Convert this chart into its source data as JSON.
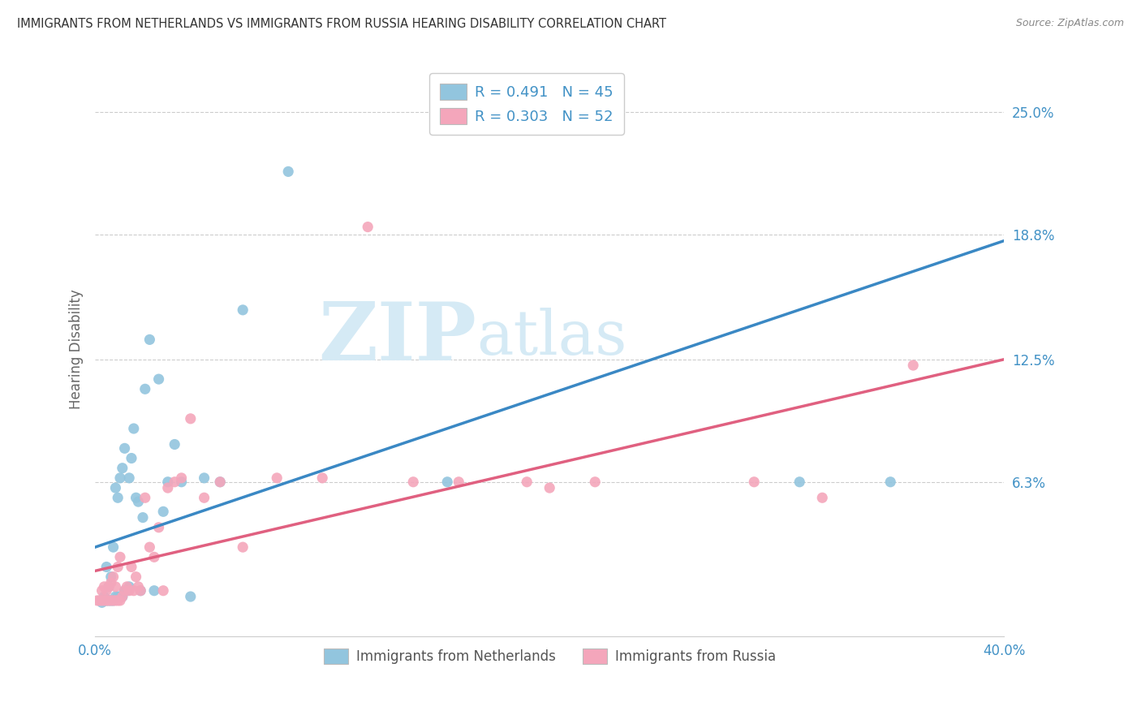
{
  "title": "IMMIGRANTS FROM NETHERLANDS VS IMMIGRANTS FROM RUSSIA HEARING DISABILITY CORRELATION CHART",
  "source": "Source: ZipAtlas.com",
  "ylabel": "Hearing Disability",
  "ytick_labels": [
    "6.3%",
    "12.5%",
    "18.8%",
    "25.0%"
  ],
  "ytick_values": [
    0.063,
    0.125,
    0.188,
    0.25
  ],
  "xmin": 0.0,
  "xmax": 0.4,
  "ymin": -0.015,
  "ymax": 0.275,
  "legend_blue_r": "R = 0.491",
  "legend_blue_n": "N = 45",
  "legend_pink_r": "R = 0.303",
  "legend_pink_n": "N = 52",
  "legend_label_blue": "Immigrants from Netherlands",
  "legend_label_pink": "Immigrants from Russia",
  "blue_color": "#92c5de",
  "pink_color": "#f4a6bb",
  "blue_line_color": "#3a88c4",
  "pink_line_color": "#e06080",
  "title_color": "#333333",
  "axis_label_color": "#4292c6",
  "watermark_color": "#d5eaf5",
  "background_color": "#ffffff",
  "blue_line_x0": 0.0,
  "blue_line_y0": 0.03,
  "blue_line_x1": 0.4,
  "blue_line_y1": 0.185,
  "pink_line_x0": 0.0,
  "pink_line_y0": 0.018,
  "pink_line_x1": 0.4,
  "pink_line_y1": 0.125,
  "blue_scatter_x": [
    0.003,
    0.004,
    0.005,
    0.005,
    0.006,
    0.006,
    0.007,
    0.007,
    0.008,
    0.008,
    0.009,
    0.009,
    0.01,
    0.01,
    0.011,
    0.011,
    0.012,
    0.012,
    0.013,
    0.013,
    0.014,
    0.015,
    0.015,
    0.016,
    0.017,
    0.018,
    0.019,
    0.02,
    0.021,
    0.022,
    0.024,
    0.026,
    0.028,
    0.03,
    0.032,
    0.035,
    0.038,
    0.042,
    0.048,
    0.055,
    0.065,
    0.085,
    0.155,
    0.31,
    0.35
  ],
  "blue_scatter_y": [
    0.002,
    0.005,
    0.003,
    0.02,
    0.003,
    0.01,
    0.003,
    0.015,
    0.003,
    0.03,
    0.005,
    0.06,
    0.005,
    0.055,
    0.005,
    0.065,
    0.005,
    0.07,
    0.008,
    0.08,
    0.008,
    0.01,
    0.065,
    0.075,
    0.09,
    0.055,
    0.053,
    0.008,
    0.045,
    0.11,
    0.135,
    0.008,
    0.115,
    0.048,
    0.063,
    0.082,
    0.063,
    0.005,
    0.065,
    0.063,
    0.15,
    0.22,
    0.063,
    0.063,
    0.063
  ],
  "pink_scatter_x": [
    0.001,
    0.002,
    0.003,
    0.003,
    0.004,
    0.004,
    0.005,
    0.005,
    0.006,
    0.006,
    0.007,
    0.007,
    0.008,
    0.008,
    0.009,
    0.009,
    0.01,
    0.01,
    0.011,
    0.011,
    0.012,
    0.013,
    0.014,
    0.015,
    0.016,
    0.017,
    0.018,
    0.019,
    0.02,
    0.022,
    0.024,
    0.026,
    0.028,
    0.03,
    0.032,
    0.035,
    0.038,
    0.042,
    0.048,
    0.055,
    0.065,
    0.08,
    0.1,
    0.12,
    0.14,
    0.16,
    0.19,
    0.2,
    0.22,
    0.29,
    0.32,
    0.36
  ],
  "pink_scatter_y": [
    0.003,
    0.003,
    0.003,
    0.008,
    0.003,
    0.01,
    0.003,
    0.008,
    0.003,
    0.01,
    0.003,
    0.012,
    0.003,
    0.015,
    0.003,
    0.01,
    0.003,
    0.02,
    0.003,
    0.025,
    0.005,
    0.008,
    0.01,
    0.008,
    0.02,
    0.008,
    0.015,
    0.01,
    0.008,
    0.055,
    0.03,
    0.025,
    0.04,
    0.008,
    0.06,
    0.063,
    0.065,
    0.095,
    0.055,
    0.063,
    0.03,
    0.065,
    0.065,
    0.192,
    0.063,
    0.063,
    0.063,
    0.06,
    0.063,
    0.063,
    0.055,
    0.122
  ]
}
